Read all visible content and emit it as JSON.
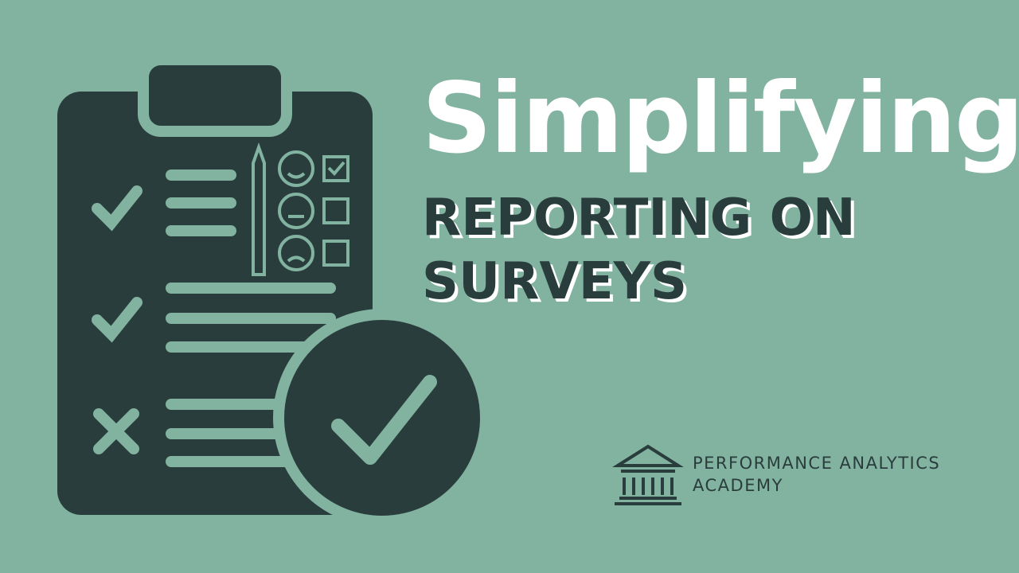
{
  "title": "Simplifying",
  "subtitle_lines": [
    "REPORTING ON",
    "SURVEYS"
  ],
  "brand": {
    "name": "PERFORMANCE ANALYTICS",
    "sub": "ACADEMY"
  }
}
